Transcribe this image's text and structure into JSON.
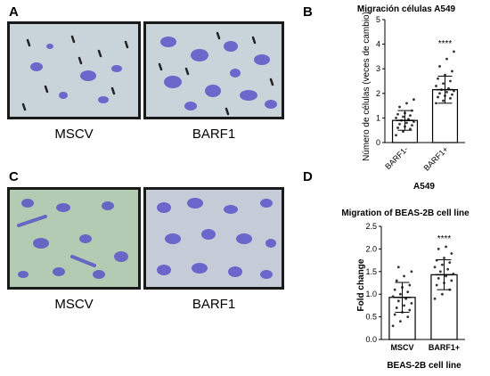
{
  "panels": {
    "A": {
      "letter": "A",
      "left_label": "MSCV",
      "right_label": "BARF1"
    },
    "B": {
      "letter": "B"
    },
    "C": {
      "letter": "C",
      "left_label": "MSCV",
      "right_label": "BARF1"
    },
    "D": {
      "letter": "D"
    }
  },
  "colors": {
    "bar_fill": "#ffffff",
    "stain": "#5b55c9",
    "bg_a": "#c8d3da",
    "bg_c": "#b4cbb3"
  },
  "chart_data": [
    {
      "type": "bar",
      "title": "Migración células A549",
      "xlabel": "A549",
      "ylabel": "Número de células (veces de cambio)",
      "categories": [
        "BARF1-",
        "BARF1+"
      ],
      "values": [
        0.9,
        2.15
      ],
      "error": [
        0.4,
        0.55
      ],
      "ylim": [
        0,
        5
      ],
      "yticks": [
        "0",
        "1",
        "2",
        "3",
        "4",
        "5"
      ],
      "significance": "****",
      "points": [
        [
          0.3,
          0.45,
          0.55,
          0.6,
          0.65,
          0.7,
          0.75,
          0.8,
          0.85,
          0.9,
          0.95,
          1.0,
          1.05,
          1.1,
          1.15,
          1.2,
          1.3,
          1.45,
          1.6,
          1.75
        ],
        [
          1.6,
          1.7,
          1.8,
          1.85,
          1.9,
          1.95,
          2.0,
          2.05,
          2.1,
          2.15,
          2.2,
          2.3,
          2.4,
          2.5,
          2.6,
          2.75,
          2.9,
          3.1,
          3.4,
          3.7
        ]
      ]
    },
    {
      "type": "bar",
      "title": "Migration of BEAS-2B cell line",
      "xlabel": "BEAS-2B cell line",
      "ylabel": "Fold change",
      "categories": [
        "MSCV",
        "BARF1+"
      ],
      "values": [
        0.93,
        1.43
      ],
      "error": [
        0.33,
        0.33
      ],
      "ylim": [
        0,
        2.5
      ],
      "yticks": [
        "0.0",
        "0.5",
        "1.0",
        "1.5",
        "2.0",
        "2.5"
      ],
      "significance": "****",
      "points": [
        [
          0.3,
          0.4,
          0.5,
          0.55,
          0.6,
          0.65,
          0.7,
          0.75,
          0.8,
          0.85,
          0.9,
          0.95,
          1.0,
          1.05,
          1.1,
          1.15,
          1.2,
          1.3,
          1.4,
          1.5,
          1.6
        ],
        [
          0.9,
          1.0,
          1.1,
          1.2,
          1.25,
          1.3,
          1.35,
          1.4,
          1.45,
          1.5,
          1.55,
          1.6,
          1.65,
          1.7,
          1.75,
          1.8,
          1.9,
          2.0,
          2.05
        ]
      ]
    }
  ]
}
